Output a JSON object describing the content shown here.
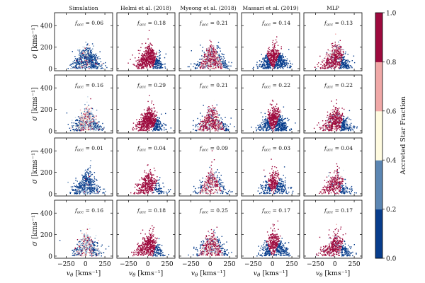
{
  "chart_data": {
    "type": "scatter",
    "column_titles": [
      "Simulation",
      "Helmi et al. (2018)",
      "Myeong et al. (2018)",
      "Massari et al. (2019)",
      "MLP"
    ],
    "facc_label": "f",
    "facc_sub": "acc",
    "facc_values": [
      [
        "0.06",
        "0.18",
        "0.21",
        "0.14",
        "0.13"
      ],
      [
        "0.16",
        "0.29",
        "0.21",
        "0.22",
        "0.22"
      ],
      [
        "0.01",
        "0.04",
        "0.09",
        "0.03",
        "0.04"
      ],
      [
        "0.16",
        "0.18",
        "0.25",
        "0.17",
        "0.17"
      ]
    ],
    "ylabel": "σ [kms⁻¹]",
    "xlabel": "v_θ [kms⁻¹]",
    "xlim": [
      -400,
      350
    ],
    "ylim": [
      -20,
      520
    ],
    "xticks": [
      -250,
      0,
      250
    ],
    "yticks": [
      0,
      200,
      400
    ],
    "colorbar": {
      "label": "Accreted Star Fraction",
      "ticks": [
        "0.0",
        "0.2",
        "0.4",
        "0.6",
        "0.8",
        "1.0"
      ],
      "colors": [
        "#083d8c",
        "#5b86b3",
        "#c2d6e6",
        "#fffbe0",
        "#f0a8a7",
        "#9d0a3e"
      ]
    },
    "grid": false
  }
}
